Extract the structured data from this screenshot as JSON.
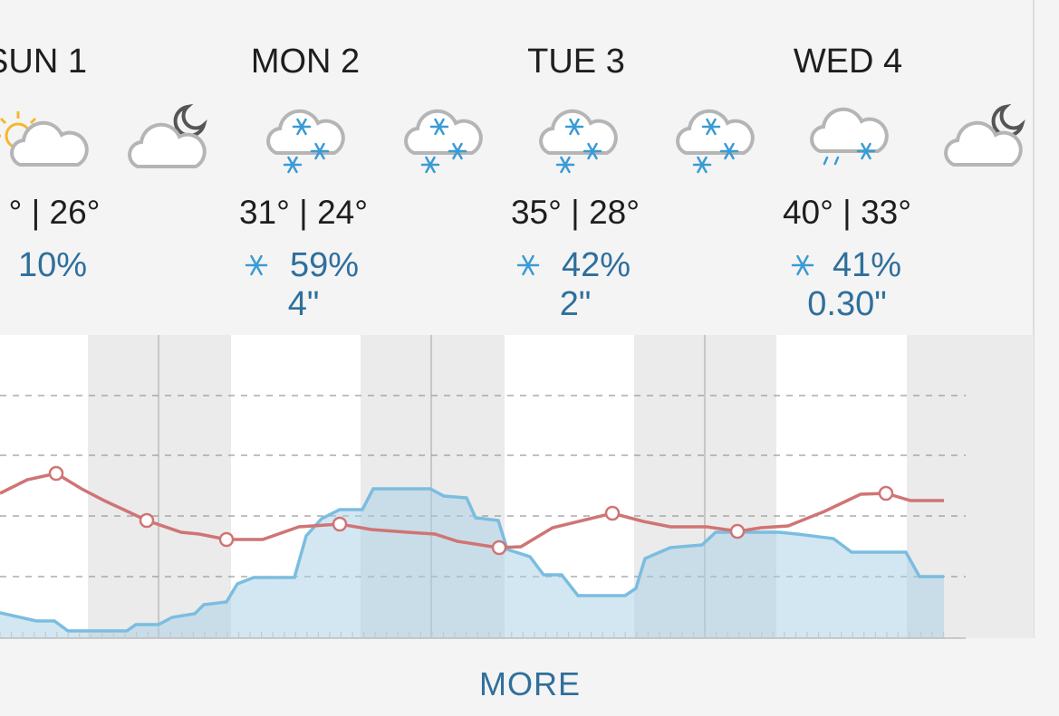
{
  "days": [
    {
      "label": "SUN 1",
      "temps": "° | 26°",
      "precip": "10%"
    },
    {
      "label": "MON 2",
      "temps": "31° | 24°",
      "precip": "59%",
      "amount": "4\""
    },
    {
      "label": "TUE 3",
      "temps": "35° | 28°",
      "precip": "42%",
      "amount": "2\""
    },
    {
      "label": "WED 4",
      "temps": "40° | 33°",
      "precip": "41%",
      "amount": "0.30\""
    }
  ],
  "more": "MORE"
}
